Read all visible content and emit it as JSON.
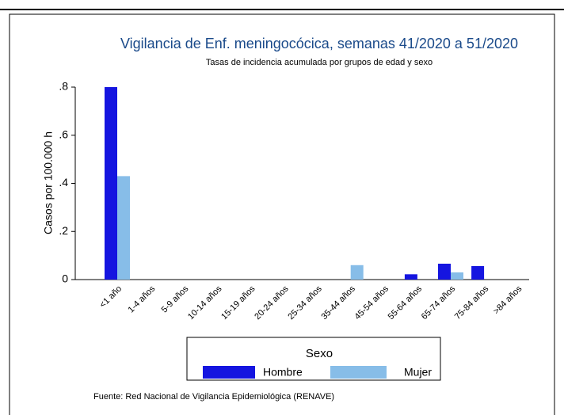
{
  "chart_data": {
    "type": "bar",
    "title": "Vigilancia de Enf. meningocócica, semanas 41/2020 a 51/2020",
    "subtitle": "Tasas de incidencia acumulada por grupos de edad y sexo",
    "y_label": "Casos por 100.000 h",
    "note": "Fuente: Red Nacional de Vigilancia Epidemiológica (RENAVE)",
    "legend_title": "Sexo",
    "categories": [
      "<1 año",
      "1-4 años",
      "5-9 años",
      "10-14 años",
      "15-19 años",
      "20-24 años",
      "25-34 años",
      "35-44 años",
      "45-54 años",
      "55-64 años",
      "65-74 años",
      "75-84 años",
      ">84 años"
    ],
    "series": [
      {
        "name": "Hombre",
        "color": "#1515e0",
        "values": [
          0.8,
          0,
          0,
          0,
          0,
          0,
          0,
          0,
          0,
          0.022,
          0.066,
          0.056,
          0
        ]
      },
      {
        "name": "Mujer",
        "color": "#87bde8",
        "values": [
          0.43,
          0,
          0,
          0,
          0,
          0,
          0,
          0.06,
          0,
          0,
          0.03,
          0,
          0
        ]
      }
    ],
    "ylim": [
      0,
      0.8
    ],
    "yticks": [
      0,
      {
        "value": 0.2,
        "label": ".2"
      },
      {
        "value": 0.4,
        "label": ".4"
      },
      {
        "value": 0.6,
        "label": ".6"
      },
      {
        "value": 0.8,
        "label": ".8"
      }
    ]
  }
}
